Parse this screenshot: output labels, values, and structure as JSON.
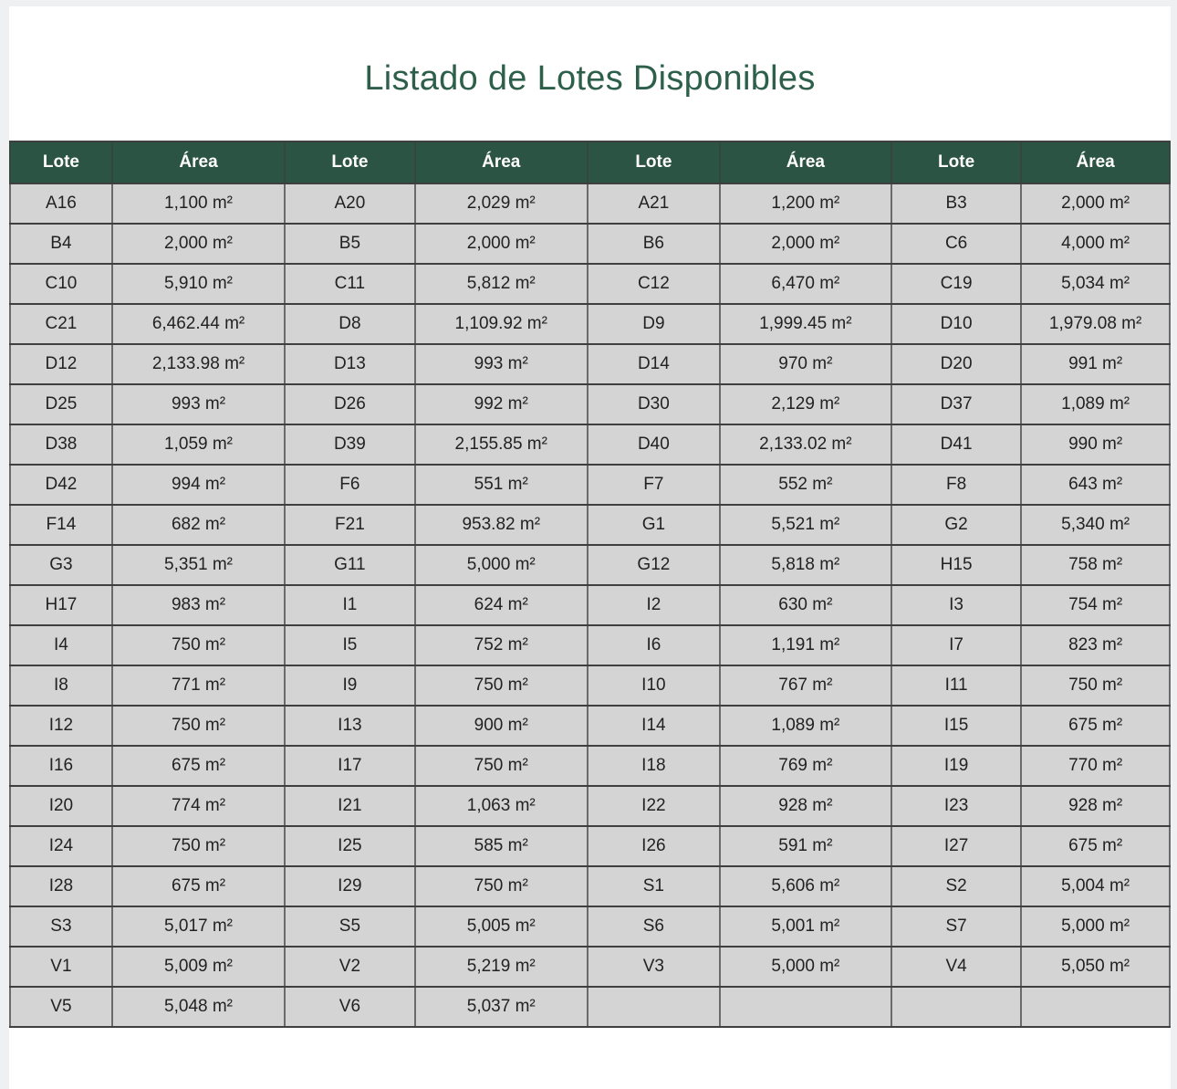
{
  "page": {
    "title": "Listado de Lotes Disponibles"
  },
  "colors": {
    "header_bg": "#2b5444",
    "title": "#2d5f4b",
    "row_bg": "#d4d4d4"
  },
  "table": {
    "header_labels": [
      "Lote",
      "Área",
      "Lote",
      "Área",
      "Lote",
      "Área",
      "Lote",
      "Área"
    ],
    "rows": [
      [
        "A16",
        "1,100 m²",
        "A20",
        "2,029 m²",
        "A21",
        "1,200 m²",
        "B3",
        "2,000 m²"
      ],
      [
        "B4",
        "2,000 m²",
        "B5",
        "2,000 m²",
        "B6",
        "2,000 m²",
        "C6",
        "4,000 m²"
      ],
      [
        "C10",
        "5,910 m²",
        "C11",
        "5,812 m²",
        "C12",
        "6,470 m²",
        "C19",
        "5,034 m²"
      ],
      [
        "C21",
        "6,462.44 m²",
        "D8",
        "1,109.92 m²",
        "D9",
        "1,999.45 m²",
        "D10",
        "1,979.08 m²"
      ],
      [
        "D12",
        "2,133.98 m²",
        "D13",
        "993 m²",
        "D14",
        "970 m²",
        "D20",
        "991 m²"
      ],
      [
        "D25",
        "993 m²",
        "D26",
        "992 m²",
        "D30",
        "2,129 m²",
        "D37",
        "1,089 m²"
      ],
      [
        "D38",
        "1,059 m²",
        "D39",
        "2,155.85 m²",
        "D40",
        "2,133.02 m²",
        "D41",
        "990 m²"
      ],
      [
        "D42",
        "994 m²",
        "F6",
        "551 m²",
        "F7",
        "552 m²",
        "F8",
        "643 m²"
      ],
      [
        "F14",
        "682 m²",
        "F21",
        "953.82 m²",
        "G1",
        "5,521 m²",
        "G2",
        "5,340 m²"
      ],
      [
        "G3",
        "5,351 m²",
        "G11",
        "5,000 m²",
        "G12",
        "5,818 m²",
        "H15",
        "758 m²"
      ],
      [
        "H17",
        "983 m²",
        "I1",
        "624 m²",
        "I2",
        "630 m²",
        "I3",
        "754 m²"
      ],
      [
        "I4",
        "750 m²",
        "I5",
        "752 m²",
        "I6",
        "1,191 m²",
        "I7",
        "823 m²"
      ],
      [
        "I8",
        "771 m²",
        "I9",
        "750 m²",
        "I10",
        "767 m²",
        "I11",
        "750 m²"
      ],
      [
        "I12",
        "750 m²",
        "I13",
        "900 m²",
        "I14",
        "1,089 m²",
        "I15",
        "675 m²"
      ],
      [
        "I16",
        "675 m²",
        "I17",
        "750 m²",
        "I18",
        "769 m²",
        "I19",
        "770 m²"
      ],
      [
        "I20",
        "774 m²",
        "I21",
        "1,063 m²",
        "I22",
        "928 m²",
        "I23",
        "928 m²"
      ],
      [
        "I24",
        "750 m²",
        "I25",
        "585 m²",
        "I26",
        "591 m²",
        "I27",
        "675 m²"
      ],
      [
        "I28",
        "675 m²",
        "I29",
        "750 m²",
        "S1",
        "5,606 m²",
        "S2",
        "5,004 m²"
      ],
      [
        "S3",
        "5,017 m²",
        "S5",
        "5,005 m²",
        "S6",
        "5,001 m²",
        "S7",
        "5,000 m²"
      ],
      [
        "V1",
        "5,009 m²",
        "V2",
        "5,219 m²",
        "V3",
        "5,000 m²",
        "V4",
        "5,050 m²"
      ],
      [
        "V5",
        "5,048 m²",
        "V6",
        "5,037 m²",
        "",
        "",
        "",
        ""
      ]
    ]
  }
}
